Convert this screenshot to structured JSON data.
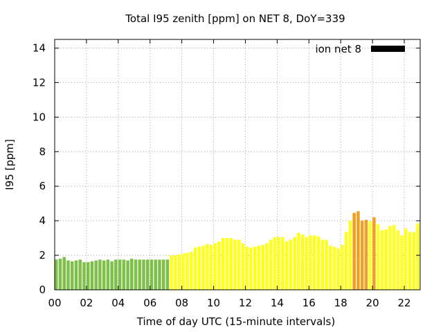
{
  "chart_data": {
    "type": "bar",
    "title": "Total I95 zenith [ppm] on NET 8, DoY=339",
    "xlabel": "Time of day UTC (15-minute intervals)",
    "ylabel": "I95 [ppm]",
    "xlim": [
      0,
      23
    ],
    "ylim": [
      0,
      14.5
    ],
    "x_ticks": [
      "00",
      "02",
      "04",
      "06",
      "08",
      "10",
      "12",
      "14",
      "16",
      "18",
      "20",
      "22"
    ],
    "x_tick_values": [
      0,
      2,
      4,
      6,
      8,
      10,
      12,
      14,
      16,
      18,
      20,
      22
    ],
    "y_ticks": [
      "0",
      "2",
      "4",
      "6",
      "8",
      "10",
      "12",
      "14"
    ],
    "y_tick_values": [
      0,
      2,
      4,
      6,
      8,
      10,
      12,
      14
    ],
    "grid": true,
    "legend_position": "top-right",
    "series": [
      {
        "name": "ion net 8",
        "legend_color": "#000000",
        "interval_hours": 0.25,
        "values": [
          1.75,
          1.8,
          1.9,
          1.7,
          1.65,
          1.7,
          1.75,
          1.6,
          1.6,
          1.65,
          1.7,
          1.75,
          1.7,
          1.75,
          1.65,
          1.75,
          1.75,
          1.75,
          1.7,
          1.8,
          1.75,
          1.75,
          1.75,
          1.75,
          1.75,
          1.75,
          1.75,
          1.75,
          1.75,
          2.0,
          2.0,
          2.05,
          2.1,
          2.15,
          2.2,
          2.45,
          2.5,
          2.55,
          2.65,
          2.6,
          2.7,
          2.8,
          3.0,
          3.0,
          3.0,
          2.9,
          2.9,
          2.7,
          2.5,
          2.45,
          2.5,
          2.55,
          2.6,
          2.7,
          2.9,
          3.05,
          3.05,
          3.05,
          2.8,
          2.9,
          3.05,
          3.3,
          3.2,
          3.05,
          3.15,
          3.15,
          3.1,
          2.9,
          2.9,
          2.55,
          2.5,
          2.4,
          2.6,
          3.35,
          4.0,
          4.45,
          4.55,
          4.0,
          4.05,
          3.95,
          4.2,
          3.8,
          3.45,
          3.5,
          3.7,
          3.75,
          3.45,
          3.15,
          3.55,
          3.35,
          3.35,
          3.85
        ],
        "bar_colors": {
          "green": "#7dc14a",
          "yellow": "#ffff20",
          "orange": "#f0a020"
        },
        "color_class": [
          "green",
          "green",
          "green",
          "green",
          "green",
          "green",
          "green",
          "green",
          "green",
          "green",
          "green",
          "green",
          "green",
          "green",
          "green",
          "green",
          "green",
          "green",
          "green",
          "green",
          "green",
          "green",
          "green",
          "green",
          "green",
          "green",
          "green",
          "green",
          "green",
          "yellow",
          "yellow",
          "yellow",
          "yellow",
          "yellow",
          "yellow",
          "yellow",
          "yellow",
          "yellow",
          "yellow",
          "yellow",
          "yellow",
          "yellow",
          "yellow",
          "yellow",
          "yellow",
          "yellow",
          "yellow",
          "yellow",
          "yellow",
          "yellow",
          "yellow",
          "yellow",
          "yellow",
          "yellow",
          "yellow",
          "yellow",
          "yellow",
          "yellow",
          "yellow",
          "yellow",
          "yellow",
          "yellow",
          "yellow",
          "yellow",
          "yellow",
          "yellow",
          "yellow",
          "yellow",
          "yellow",
          "yellow",
          "yellow",
          "yellow",
          "yellow",
          "yellow",
          "yellow",
          "orange",
          "orange",
          "orange",
          "orange",
          "yellow",
          "orange",
          "yellow",
          "yellow",
          "yellow",
          "yellow",
          "yellow",
          "yellow",
          "yellow",
          "yellow",
          "yellow",
          "yellow",
          "yellow"
        ]
      }
    ]
  }
}
